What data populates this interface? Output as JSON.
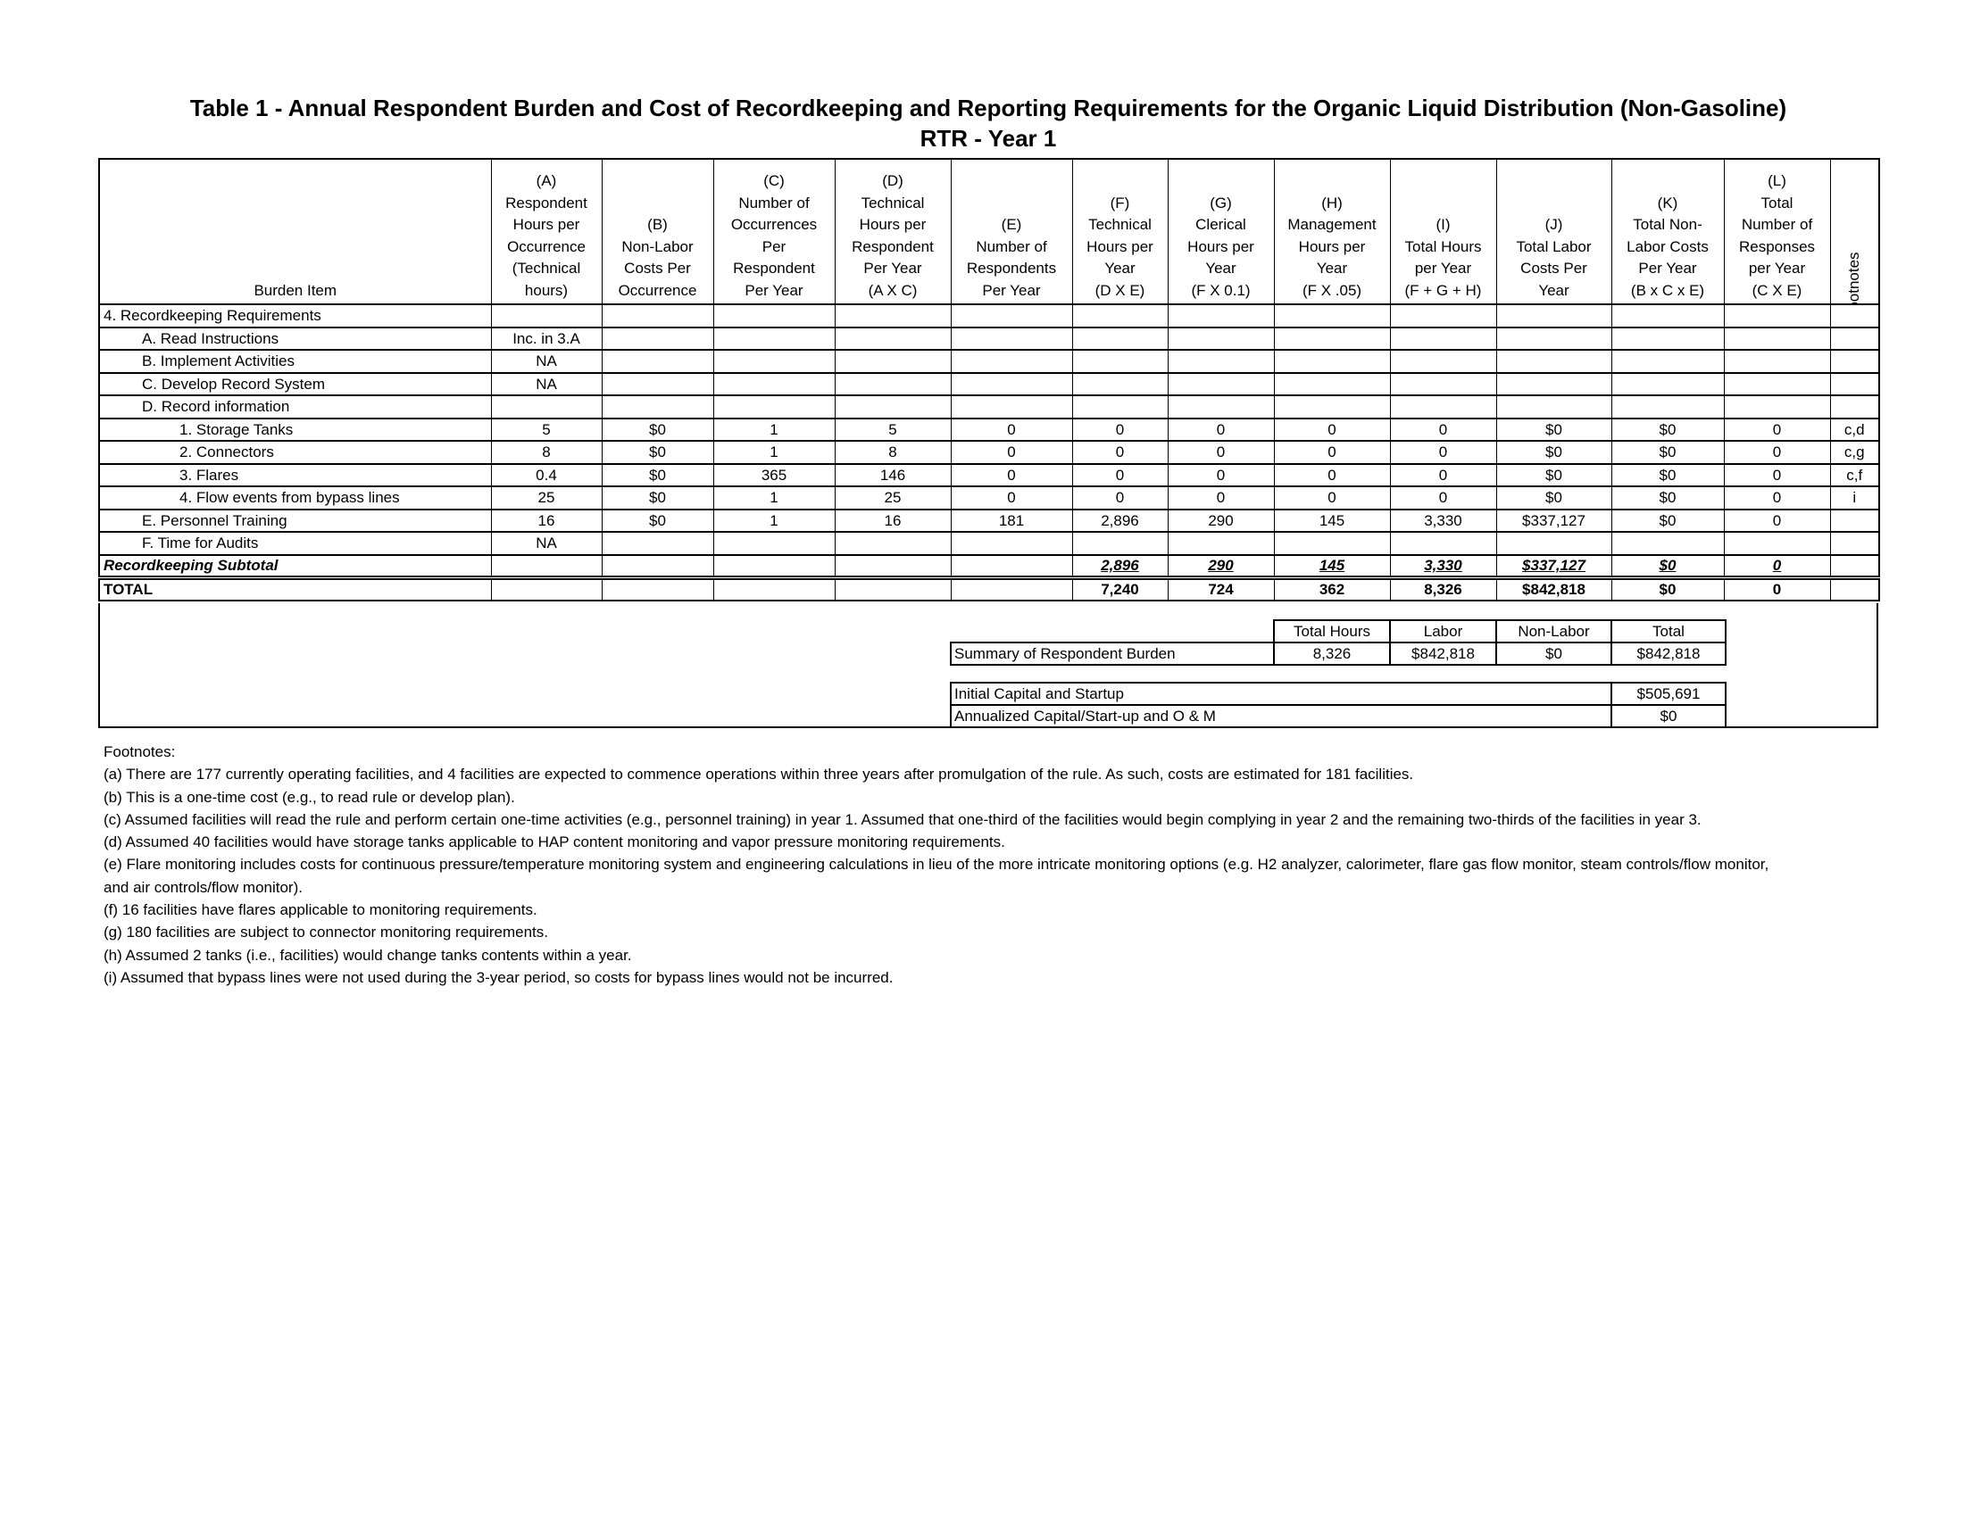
{
  "title": {
    "line1": "Table 1 - Annual Respondent Burden and Cost of Recordkeeping and Reporting Requirements for the Organic Liquid Distribution (Non-Gasoline)",
    "line2": "RTR  - Year 1"
  },
  "columns": [
    "Burden Item",
    "(A)\nRespondent\nHours per\nOccurrence\n(Technical\nhours)",
    "(B)\nNon-Labor\nCosts Per\nOccurrence",
    "(C)\nNumber of\nOccurrences\nPer\nRespondent\nPer Year",
    "(D)\nTechnical\nHours per\nRespondent\nPer Year\n(A X C)",
    "(E)\nNumber of\nRespondents\nPer Year",
    "(F)\nTechnical\nHours per\nYear\n(D X E)",
    "(G)\nClerical\nHours per\nYear\n(F X 0.1)",
    "(H)\nManagement\nHours per\nYear\n(F X .05)",
    "(I)\nTotal Hours\nper Year\n(F + G + H)",
    "(J)\nTotal Labor\nCosts Per\nYear",
    "(K)\nTotal Non-\nLabor Costs\nPer Year\n(B x C x E)",
    "(L)\nTotal\nNumber of\nResponses\nper Year\n(C X E)",
    "Footnotes"
  ],
  "rows": [
    {
      "label": "4.  Recordkeeping Requirements",
      "level": 0,
      "cells": [
        "",
        "",
        "",
        "",
        "",
        "",
        "",
        "",
        "",
        "",
        "",
        ""
      ],
      "footnote": ""
    },
    {
      "label": "A.  Read Instructions",
      "level": 1,
      "cells": [
        "Inc. in 3.A",
        "",
        "",
        "",
        "",
        "",
        "",
        "",
        "",
        "",
        "",
        ""
      ],
      "footnote": ""
    },
    {
      "label": "B.  Implement Activities",
      "level": 1,
      "cells": [
        "NA",
        "",
        "",
        "",
        "",
        "",
        "",
        "",
        "",
        "",
        "",
        ""
      ],
      "footnote": ""
    },
    {
      "label": "C.  Develop Record System",
      "level": 1,
      "cells": [
        "NA",
        "",
        "",
        "",
        "",
        "",
        "",
        "",
        "",
        "",
        "",
        ""
      ],
      "footnote": ""
    },
    {
      "label": "D.  Record information",
      "level": 1,
      "cells": [
        "",
        "",
        "",
        "",
        "",
        "",
        "",
        "",
        "",
        "",
        "",
        ""
      ],
      "footnote": ""
    },
    {
      "label": "1.  Storage Tanks",
      "level": 2,
      "cells": [
        "5",
        "$0",
        "1",
        "5",
        "0",
        "0",
        "0",
        "0",
        "0",
        "$0",
        "$0",
        "0"
      ],
      "footnote": "c,d"
    },
    {
      "label": "2.  Connectors",
      "level": 2,
      "cells": [
        "8",
        "$0",
        "1",
        "8",
        "0",
        "0",
        "0",
        "0",
        "0",
        "$0",
        "$0",
        "0"
      ],
      "footnote": "c,g"
    },
    {
      "label": "3.  Flares",
      "level": 2,
      "cells": [
        "0.4",
        "$0",
        "365",
        "146",
        "0",
        "0",
        "0",
        "0",
        "0",
        "$0",
        "$0",
        "0"
      ],
      "footnote": "c,f"
    },
    {
      "label": "4.  Flow events from bypass lines",
      "level": 2,
      "cells": [
        "25",
        "$0",
        "1",
        "25",
        "0",
        "0",
        "0",
        "0",
        "0",
        "$0",
        "$0",
        "0"
      ],
      "footnote": "i"
    },
    {
      "label": "E.  Personnel Training",
      "level": 1,
      "cells": [
        "16",
        "$0",
        "1",
        "16",
        "181",
        "2,896",
        "290",
        "145",
        "3,330",
        "$337,127",
        "$0",
        "0"
      ],
      "footnote": ""
    },
    {
      "label": "F.  Time for Audits",
      "level": 1,
      "cells": [
        "NA",
        "",
        "",
        "",
        "",
        "",
        "",
        "",
        "",
        "",
        "",
        ""
      ],
      "footnote": ""
    }
  ],
  "subtotal": {
    "label": "Recordkeeping Subtotal",
    "cells": [
      "",
      "",
      "",
      "",
      "",
      "2,896",
      "290",
      "145",
      "3,330",
      "$337,127",
      "$0",
      "0"
    ],
    "footnote": ""
  },
  "total": {
    "label": "TOTAL",
    "cells": [
      "",
      "",
      "",
      "",
      "",
      "7,240",
      "724",
      "362",
      "8,326",
      "$842,818",
      "$0",
      "0"
    ],
    "footnote": ""
  },
  "summary": {
    "headers": [
      "Total Hours",
      "Labor",
      "Non-Labor",
      "Total"
    ],
    "label": "Summary of Respondent Burden",
    "values": [
      "8,326",
      "$842,818",
      "$0",
      "$842,818"
    ]
  },
  "capital": {
    "initial_label": "Initial Capital and Startup",
    "initial_value": "$505,691",
    "annualized_label": "Annualized Capital/Start-up and O & M",
    "annualized_value": "$0"
  },
  "footnotes": {
    "heading": "Footnotes:",
    "items": [
      "(a) There are 177 currently operating facilities, and 4 facilities are expected to commence operations within three years after promulgation of the rule. As such, costs are estimated for 181 facilities.",
      "(b) This is a one-time cost (e.g., to read rule or develop plan).",
      "(c) Assumed facilities will read the rule and perform certain one-time activities (e.g., personnel training) in year 1. Assumed that one-third of the facilities would begin complying in year 2 and the remaining two-thirds of the facilities in year 3.",
      "(d) Assumed 40 facilities would have storage tanks applicable to HAP content monitoring and vapor pressure monitoring requirements.",
      "(e) Flare monitoring includes costs for continuous pressure/temperature monitoring system and engineering calculations in lieu of the more intricate monitoring options (e.g. H2 analyzer, calorimeter, flare gas flow monitor, steam controls/flow monitor, and air controls/flow monitor).",
      "(f) 16 facilities have flares applicable to monitoring requirements.",
      "(g) 180 facilities are subject to connector monitoring requirements.",
      "(h) Assumed 2 tanks (i.e., facilities) would change tanks contents within a year.",
      "(i) Assumed that bypass lines were not used during the 3-year period, so costs for bypass lines would not be incurred."
    ]
  }
}
